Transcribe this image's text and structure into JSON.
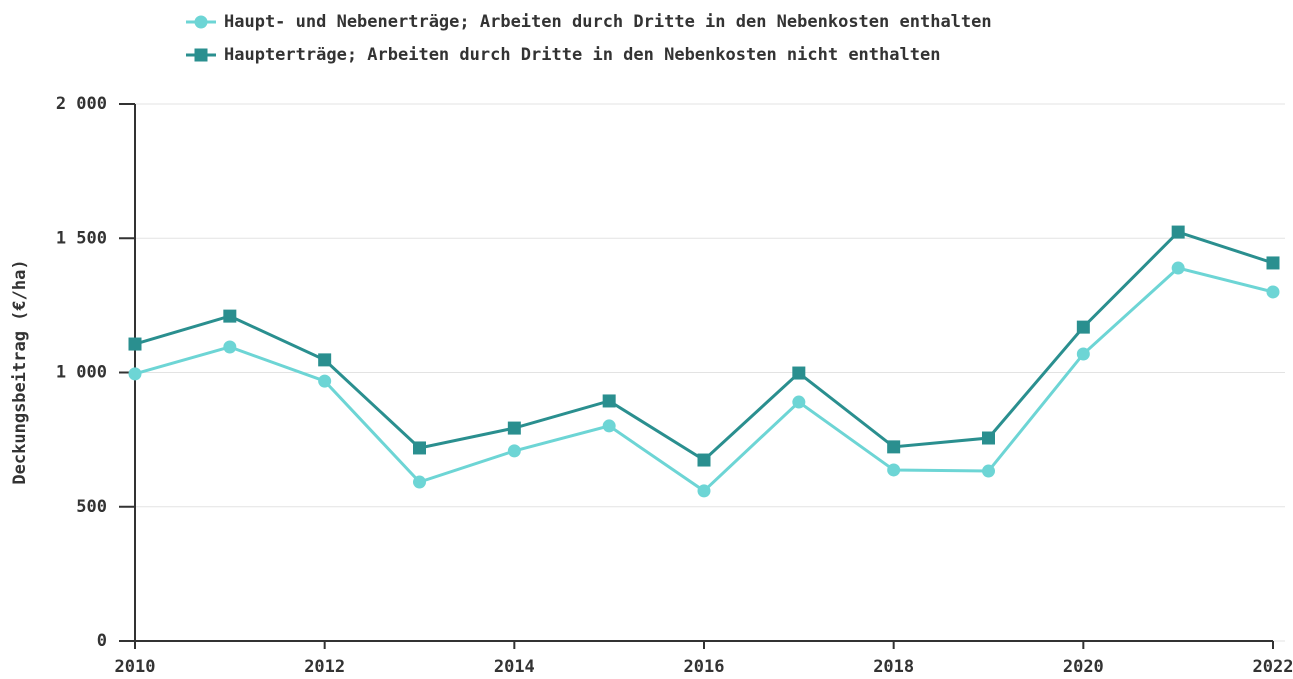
{
  "chart_data": {
    "type": "line",
    "y_label": "Deckungsbeitrag (€/ha)",
    "x": [
      2010,
      2011,
      2012,
      2013,
      2014,
      2015,
      2016,
      2017,
      2018,
      2019,
      2020,
      2021,
      2022
    ],
    "series": [
      {
        "name": "Haupt- und Nebenerträge; Arbeiten durch Dritte in den Nebenkosten enthalten",
        "color": "#6dd5d5",
        "marker": "circle",
        "values": [
          995,
          1095,
          968,
          592,
          708,
          801,
          559,
          890,
          637,
          633,
          1069,
          1389,
          1300
        ]
      },
      {
        "name": "Haupterträge; Arbeiten durch Dritte in den Nebenkosten nicht enthalten",
        "color": "#2a8f8f",
        "marker": "square",
        "values": [
          1106,
          1210,
          1047,
          719,
          793,
          894,
          674,
          998,
          723,
          756,
          1169,
          1523,
          1408
        ]
      }
    ],
    "xlim": [
      2010,
      2022
    ],
    "xticks": [
      2010,
      2012,
      2014,
      2016,
      2018,
      2020,
      2022
    ],
    "ylim": [
      0,
      2000
    ],
    "yticks": [
      0,
      500,
      {
        "value": 1000,
        "label": "1 000"
      },
      {
        "value": 1500,
        "label": "1 500"
      },
      {
        "value": 2000,
        "label": "2 000"
      }
    ],
    "grid": true
  }
}
